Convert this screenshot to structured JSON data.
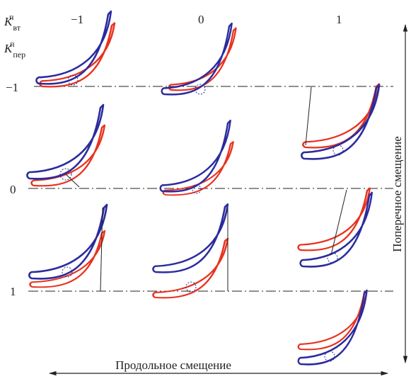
{
  "labels": {
    "k_vt": {
      "symbol": "K",
      "sup": "п",
      "sub": "вт"
    },
    "k_per": {
      "symbol": "K",
      "sup": "п",
      "sub": "пер"
    }
  },
  "columns": [
    "−1",
    "0",
    "1"
  ],
  "rows": [
    "−1",
    "0",
    "1"
  ],
  "x_axis": "Продольное смещение",
  "y_axis": "Поперечное смещение"
}
